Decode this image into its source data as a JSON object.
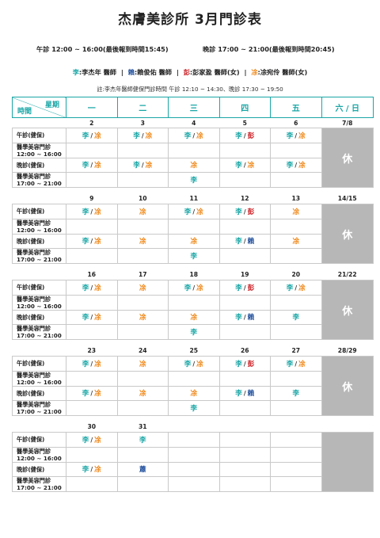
{
  "title": "杰膚美診所  3月門診表",
  "hours": {
    "am": "午診 12:00 ~ 16:00(最後報到時間15:45)",
    "pm": "晚診 17:00 ~ 21:00(最後報到時間20:45)"
  },
  "legend": [
    {
      "abbr": "李",
      "text": ":李杰年 醫師",
      "color": "#1aa6a6"
    },
    {
      "abbr": "賴",
      "text": ":賴俊佑 醫師",
      "color": "#1f4e9c"
    },
    {
      "abbr": "彭",
      "text": ":彭家盈 醫師(女)",
      "color": "#c8191e"
    },
    {
      "abbr": "凃",
      "text": ":凃宛伶 醫師(女)",
      "color": "#f08a1c"
    }
  ],
  "note": "註:李杰年醫師健保門診時間  午診 12:10 ~ 14:30、晚診 17:30 ~ 19:50",
  "header": {
    "week": "星期",
    "time": "時間",
    "days": [
      "一",
      "二",
      "三",
      "四",
      "五",
      "六 / 日"
    ]
  },
  "labels": {
    "am": "午診(健保)",
    "cosm_am_1": "醫學美容門診",
    "cosm_am_2": "12:00 ~ 16:00",
    "pm": "晚診(健保)",
    "cosm_pm_1": "醫學美容門診",
    "cosm_pm_2": "17:00 ~ 21:00"
  },
  "rest_label": "休",
  "colors": {
    "李": "#1aa6a6",
    "凃": "#f08a1c",
    "賴": "#1f4e9c",
    "彭": "#c8191e",
    "蕭": "#1f4e9c"
  },
  "weeks": [
    {
      "dates": [
        "2",
        "3",
        "4",
        "5",
        "6",
        "7/8"
      ],
      "am": [
        [
          "李",
          "凃"
        ],
        [
          "李",
          "凃"
        ],
        [
          "李",
          "凃"
        ],
        [
          "李",
          "彭"
        ],
        [
          "李",
          "凃"
        ]
      ],
      "cam": [
        [],
        [],
        [],
        [],
        []
      ],
      "pm": [
        [
          "李",
          "凃"
        ],
        [
          "李",
          "凃"
        ],
        [
          "凃"
        ],
        [
          "李",
          "凃"
        ],
        [
          "李",
          "凃"
        ]
      ],
      "cpm": [
        [],
        [],
        [
          "李"
        ],
        [],
        []
      ],
      "rest": true
    },
    {
      "dates": [
        "9",
        "10",
        "11",
        "12",
        "13",
        "14/15"
      ],
      "am": [
        [
          "李",
          "凃"
        ],
        [
          "凃"
        ],
        [
          "李",
          "凃"
        ],
        [
          "李",
          "彭"
        ],
        [
          "凃"
        ]
      ],
      "cam": [
        [],
        [],
        [],
        [],
        []
      ],
      "pm": [
        [
          "李",
          "凃"
        ],
        [
          "凃"
        ],
        [
          "凃"
        ],
        [
          "李",
          "賴"
        ],
        [
          "凃"
        ]
      ],
      "cpm": [
        [],
        [],
        [
          "李"
        ],
        [],
        []
      ],
      "rest": true
    },
    {
      "dates": [
        "16",
        "17",
        "18",
        "19",
        "20",
        "21/22"
      ],
      "am": [
        [
          "李",
          "凃"
        ],
        [
          "凃"
        ],
        [
          "李",
          "凃"
        ],
        [
          "李",
          "彭"
        ],
        [
          "李",
          "凃"
        ]
      ],
      "cam": [
        [],
        [],
        [],
        [],
        []
      ],
      "pm": [
        [
          "李",
          "凃"
        ],
        [
          "凃"
        ],
        [
          "凃"
        ],
        [
          "李",
          "賴"
        ],
        [
          "李"
        ]
      ],
      "cpm": [
        [],
        [],
        [
          "李"
        ],
        [],
        []
      ],
      "rest": true
    },
    {
      "dates": [
        "23",
        "24",
        "25",
        "26",
        "27",
        "28/29"
      ],
      "am": [
        [
          "李",
          "凃"
        ],
        [
          "凃"
        ],
        [
          "李",
          "凃"
        ],
        [
          "李",
          "彭"
        ],
        [
          "李",
          "凃"
        ]
      ],
      "cam": [
        [],
        [],
        [],
        [],
        []
      ],
      "pm": [
        [
          "李",
          "凃"
        ],
        [
          "凃"
        ],
        [
          "凃"
        ],
        [
          "李",
          "賴"
        ],
        [
          "李"
        ]
      ],
      "cpm": [
        [],
        [],
        [
          "李"
        ],
        [],
        []
      ],
      "rest": true
    },
    {
      "dates": [
        "30",
        "31",
        "",
        "",
        "",
        ""
      ],
      "am": [
        [
          "李",
          "凃"
        ],
        [
          "李"
        ],
        [],
        [],
        []
      ],
      "cam": [
        [],
        [],
        [],
        [],
        []
      ],
      "pm": [
        [
          "李",
          "凃"
        ],
        [
          "蕭"
        ],
        [],
        [],
        []
      ],
      "cpm": [
        [],
        [],
        [],
        [],
        []
      ],
      "rest": false
    }
  ]
}
